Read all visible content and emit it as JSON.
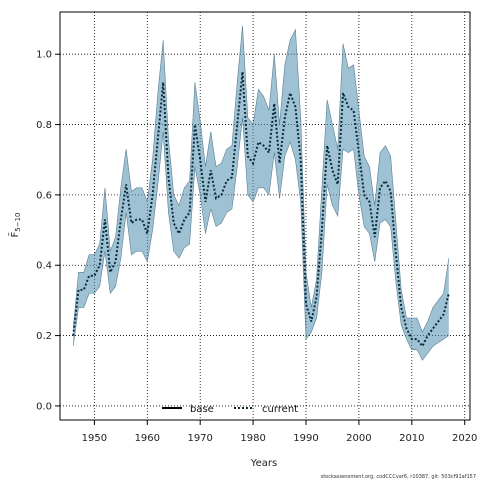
{
  "chart_data": {
    "type": "line",
    "xlabel": "Years",
    "ylabel": "F̄",
    "ylabel_subscript": "5−10",
    "xlim": [
      1943.5,
      2021
    ],
    "ylim": [
      -0.04,
      1.12
    ],
    "xticks": [
      1950,
      1960,
      1970,
      1980,
      1990,
      2000,
      2010,
      2020
    ],
    "yticks": [
      0.0,
      0.2,
      0.4,
      0.6,
      0.8,
      1.0
    ],
    "ytick_labels": [
      "0.0",
      "0.2",
      "0.4",
      "0.6",
      "0.8",
      "1.0"
    ],
    "grid": true,
    "legend_position": "bottom-center",
    "legend": [
      {
        "name": "base",
        "style": "solid",
        "color": "#000000"
      },
      {
        "name": "current",
        "style": "dotted",
        "color": "#0a2a3a"
      }
    ],
    "band_color": "#4f8fb0",
    "x": [
      1946,
      1947,
      1948,
      1949,
      1950,
      1951,
      1952,
      1953,
      1954,
      1955,
      1956,
      1957,
      1958,
      1959,
      1960,
      1961,
      1962,
      1963,
      1964,
      1965,
      1966,
      1967,
      1968,
      1969,
      1970,
      1971,
      1972,
      1973,
      1974,
      1975,
      1976,
      1977,
      1978,
      1979,
      1980,
      1981,
      1982,
      1983,
      1984,
      1985,
      1986,
      1987,
      1988,
      1989,
      1990,
      1991,
      1992,
      1993,
      1994,
      1995,
      1996,
      1997,
      1998,
      1999,
      2000,
      2001,
      2002,
      2003,
      2004,
      2005,
      2006,
      2007,
      2008,
      2009,
      2010,
      2011,
      2012,
      2013,
      2014,
      2015,
      2016,
      2017
    ],
    "series": [
      {
        "name": "current",
        "values": [
          0.2,
          0.33,
          0.33,
          0.37,
          0.37,
          0.4,
          0.53,
          0.38,
          0.41,
          0.53,
          0.63,
          0.52,
          0.53,
          0.53,
          0.49,
          0.6,
          0.76,
          0.92,
          0.65,
          0.52,
          0.49,
          0.53,
          0.55,
          0.8,
          0.7,
          0.58,
          0.67,
          0.59,
          0.6,
          0.64,
          0.65,
          0.8,
          0.95,
          0.71,
          0.69,
          0.75,
          0.74,
          0.72,
          0.86,
          0.69,
          0.82,
          0.89,
          0.85,
          0.7,
          0.29,
          0.24,
          0.31,
          0.5,
          0.74,
          0.67,
          0.63,
          0.89,
          0.85,
          0.84,
          0.72,
          0.6,
          0.58,
          0.48,
          0.62,
          0.64,
          0.61,
          0.43,
          0.28,
          0.22,
          0.19,
          0.19,
          0.17,
          0.2,
          0.22,
          0.24,
          0.26,
          0.32
        ],
        "lower": [
          0.17,
          0.28,
          0.28,
          0.32,
          0.32,
          0.34,
          0.44,
          0.32,
          0.34,
          0.42,
          0.55,
          0.43,
          0.44,
          0.44,
          0.41,
          0.5,
          0.63,
          0.78,
          0.55,
          0.44,
          0.42,
          0.45,
          0.46,
          0.68,
          0.6,
          0.49,
          0.56,
          0.51,
          0.52,
          0.55,
          0.56,
          0.68,
          0.82,
          0.6,
          0.58,
          0.62,
          0.62,
          0.6,
          0.72,
          0.59,
          0.71,
          0.75,
          0.7,
          0.58,
          0.19,
          0.21,
          0.25,
          0.38,
          0.63,
          0.57,
          0.54,
          0.73,
          0.72,
          0.73,
          0.6,
          0.51,
          0.49,
          0.41,
          0.52,
          0.53,
          0.51,
          0.35,
          0.23,
          0.19,
          0.16,
          0.16,
          0.13,
          0.15,
          0.17,
          0.18,
          0.19,
          0.2
        ],
        "upper": [
          0.22,
          0.38,
          0.38,
          0.43,
          0.43,
          0.46,
          0.62,
          0.44,
          0.48,
          0.62,
          0.73,
          0.61,
          0.62,
          0.62,
          0.58,
          0.7,
          0.89,
          1.04,
          0.76,
          0.6,
          0.57,
          0.62,
          0.64,
          0.92,
          0.81,
          0.68,
          0.78,
          0.68,
          0.69,
          0.73,
          0.74,
          0.92,
          1.08,
          0.82,
          0.8,
          0.9,
          0.88,
          0.84,
          1.0,
          0.8,
          0.97,
          1.04,
          1.07,
          0.82,
          0.38,
          0.28,
          0.36,
          0.62,
          0.87,
          0.8,
          0.73,
          1.03,
          0.96,
          0.97,
          0.84,
          0.71,
          0.68,
          0.57,
          0.72,
          0.74,
          0.71,
          0.52,
          0.33,
          0.25,
          0.25,
          0.25,
          0.21,
          0.24,
          0.28,
          0.3,
          0.32,
          0.42
        ]
      }
    ]
  },
  "footer_note": "stockassessment.org, codCCCvar6, r10387, git: 503cf91af157"
}
